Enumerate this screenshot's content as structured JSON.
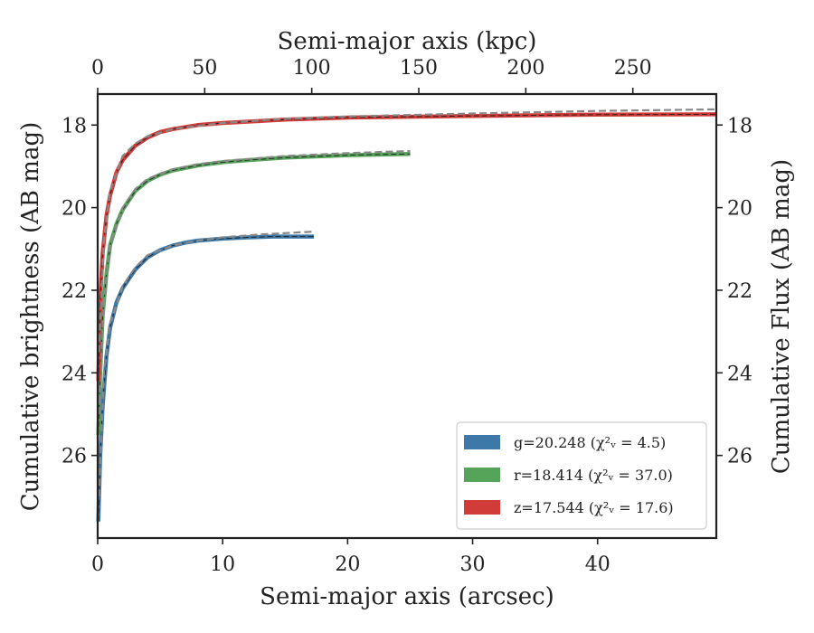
{
  "chart_data": {
    "type": "line",
    "xlabel": "Semi-major axis (arcsec)",
    "ylabel": "Cumulative brightness (AB mag)",
    "top_xlabel": "Semi-major axis (kpc)",
    "right_ylabel": "Cumulative Flux (AB mag)",
    "xlim": [
      0,
      49.5
    ],
    "ylim": [
      28.0,
      17.25
    ],
    "top_xlim": [
      0,
      289
    ],
    "xticks": [
      0,
      10,
      20,
      30,
      40
    ],
    "yticks": [
      18,
      20,
      22,
      24,
      26
    ],
    "top_xticks": [
      0,
      50,
      100,
      150,
      200,
      250
    ],
    "grid": false,
    "legend_position": "lower-right",
    "series": [
      {
        "name": "g=20.248",
        "chi_label": "χ²ᵥ = 4.5",
        "color": "#3e78a8",
        "x": [
          0.05,
          0.2,
          0.4,
          0.7,
          1.0,
          1.5,
          2.0,
          3.0,
          4.0,
          5.0,
          6.0,
          7.0,
          8.0,
          10.0,
          12.0,
          14.0,
          16.0,
          17.3
        ],
        "y": [
          27.6,
          26.0,
          24.8,
          23.6,
          22.9,
          22.3,
          21.95,
          21.5,
          21.2,
          21.03,
          20.92,
          20.85,
          20.8,
          20.75,
          20.72,
          20.7,
          20.7,
          20.7
        ],
        "model_x": [
          0.1,
          0.5,
          1.0,
          2.0,
          3.0,
          4.0,
          6.0,
          8.0,
          10.0,
          13.0,
          17.3
        ],
        "model_y": [
          27.0,
          24.0,
          22.8,
          21.9,
          21.45,
          21.15,
          20.92,
          20.8,
          20.72,
          20.65,
          20.58
        ]
      },
      {
        "name": "r=18.414",
        "chi_label": "χ²ᵥ = 37.0",
        "color": "#56a35a",
        "x": [
          0.05,
          0.2,
          0.4,
          0.7,
          1.0,
          1.5,
          2.0,
          3.0,
          4.0,
          5.0,
          6.0,
          8.0,
          10.0,
          12.0,
          15.0,
          20.0,
          25.0
        ],
        "y": [
          25.5,
          24.0,
          22.6,
          21.6,
          20.9,
          20.4,
          20.05,
          19.6,
          19.35,
          19.2,
          19.1,
          18.98,
          18.9,
          18.85,
          18.79,
          18.73,
          18.7
        ],
        "model_x": [
          0.1,
          0.5,
          1.0,
          2.0,
          3.0,
          4.0,
          6.0,
          8.0,
          10.0,
          15.0,
          20.0,
          25.0
        ],
        "model_y": [
          25.0,
          22.3,
          20.9,
          20.0,
          19.55,
          19.3,
          19.07,
          18.95,
          18.87,
          18.75,
          18.68,
          18.63
        ]
      },
      {
        "name": "z=17.544",
        "chi_label": "χ²ᵥ = 17.6",
        "color": "#d13b38",
        "x": [
          0.05,
          0.2,
          0.4,
          0.7,
          1.0,
          1.5,
          2.0,
          3.0,
          4.0,
          5.0,
          6.0,
          8.0,
          10.0,
          15.0,
          20.0,
          30.0,
          40.0,
          49.5
        ],
        "y": [
          24.2,
          22.2,
          21.1,
          20.2,
          19.7,
          19.15,
          18.85,
          18.5,
          18.3,
          18.17,
          18.1,
          18.0,
          17.95,
          17.87,
          17.82,
          17.78,
          17.75,
          17.74
        ],
        "model_x": [
          0.1,
          0.5,
          1.0,
          2.0,
          3.0,
          4.0,
          6.0,
          8.0,
          10.0,
          15.0,
          20.0,
          30.0,
          40.0,
          49.5
        ],
        "model_y": [
          23.5,
          20.8,
          19.6,
          18.75,
          18.45,
          18.27,
          18.1,
          18.02,
          17.95,
          17.85,
          17.79,
          17.72,
          17.66,
          17.62
        ]
      }
    ]
  }
}
